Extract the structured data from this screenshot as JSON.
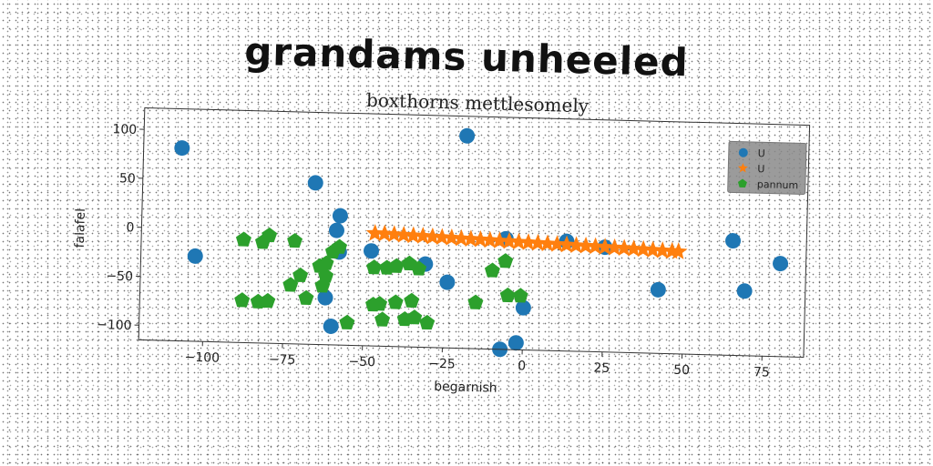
{
  "title": "grandams unheeled",
  "chart_data": {
    "type": "scatter",
    "subtitle": "boxthorns mettlesomely",
    "xlabel": "begarnish",
    "ylabel": "falafel",
    "xlim": [
      -120,
      88
    ],
    "ylim": [
      -115,
      122
    ],
    "xticks": [
      -100,
      -75,
      -50,
      -25,
      0,
      25,
      50,
      75
    ],
    "yticks": [
      100,
      50,
      0,
      -50,
      -100
    ],
    "grid": false,
    "legend_position": "top-right",
    "colors": {
      "blue": "#1f77b4",
      "orange": "#ff7f0e",
      "green": "#2ca02c"
    },
    "series": [
      {
        "name": "U",
        "marker": "circle",
        "color": "#1f77b4",
        "points": [
          [
            -108,
            82
          ],
          [
            -103,
            -28
          ],
          [
            -66,
            50
          ],
          [
            -58,
            17
          ],
          [
            -59,
            2
          ],
          [
            -58,
            -20
          ],
          [
            -48,
            -18
          ],
          [
            -62,
            -67
          ],
          [
            -60,
            -96
          ],
          [
            -31,
            -30
          ],
          [
            -24,
            -48
          ],
          [
            -19,
            102
          ],
          [
            -6,
            -2
          ],
          [
            -2,
            -108
          ],
          [
            -7,
            -115
          ],
          [
            0,
            -72
          ],
          [
            13,
            -3
          ],
          [
            25,
            -8
          ],
          [
            42,
            -50
          ],
          [
            65,
            2
          ],
          [
            69,
            -49
          ],
          [
            80,
            -20
          ]
        ]
      },
      {
        "name": "U",
        "marker": "star",
        "color": "#ff7f0e",
        "points": [
          [
            -47,
            0
          ],
          [
            -44,
            -0.3
          ],
          [
            -41,
            -0.6
          ],
          [
            -38,
            -1
          ],
          [
            -35,
            -1.3
          ],
          [
            -32,
            -1.6
          ],
          [
            -29,
            -2
          ],
          [
            -26,
            -2.3
          ],
          [
            -23,
            -2.6
          ],
          [
            -20,
            -3
          ],
          [
            -17,
            -3.3
          ],
          [
            -14,
            -3.6
          ],
          [
            -11,
            -4
          ],
          [
            -8,
            -4.3
          ],
          [
            -5,
            -4.6
          ],
          [
            -2,
            -5
          ],
          [
            1,
            -5.3
          ],
          [
            4,
            -5.6
          ],
          [
            7,
            -6
          ],
          [
            10,
            -6.3
          ],
          [
            13,
            -6.6
          ],
          [
            16,
            -7
          ],
          [
            19,
            -7.3
          ],
          [
            22,
            -7.6
          ],
          [
            25,
            -8
          ],
          [
            28,
            -8.3
          ],
          [
            31,
            -8.6
          ],
          [
            34,
            -9
          ],
          [
            37,
            -9.3
          ],
          [
            40,
            -9.6
          ],
          [
            43,
            -10
          ],
          [
            46,
            -10.3
          ],
          [
            48,
            -10.5
          ]
        ]
      },
      {
        "name": "pannum",
        "marker": "pentagon",
        "color": "#2ca02c",
        "points": [
          [
            -88,
            -10
          ],
          [
            -82,
            -12
          ],
          [
            -80,
            -5
          ],
          [
            -72,
            -10
          ],
          [
            -88,
            -72
          ],
          [
            -83,
            -73
          ],
          [
            -80,
            -72
          ],
          [
            -73,
            -55
          ],
          [
            -70,
            -45
          ],
          [
            -68,
            -68
          ],
          [
            -63,
            -55
          ],
          [
            -62,
            -45
          ],
          [
            -64,
            -35
          ],
          [
            -60,
            -20
          ],
          [
            -58,
            -15
          ],
          [
            -62,
            -32
          ],
          [
            -47,
            -35
          ],
          [
            -43,
            -35
          ],
          [
            -40,
            -33
          ],
          [
            -36,
            -30
          ],
          [
            -33,
            -35
          ],
          [
            -47,
            -73
          ],
          [
            -44,
            -88
          ],
          [
            -40,
            -70
          ],
          [
            -37,
            -87
          ],
          [
            -34,
            -85
          ],
          [
            -30,
            -90
          ],
          [
            -35,
            -68
          ],
          [
            -55,
            -92
          ],
          [
            -10,
            -35
          ],
          [
            -6,
            -25
          ],
          [
            -15,
            -68
          ],
          [
            -5,
            -60
          ],
          [
            -1,
            -60
          ],
          [
            -45,
            -72
          ]
        ]
      }
    ]
  }
}
